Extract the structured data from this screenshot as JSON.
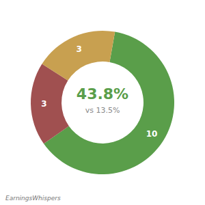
{
  "chart_data": {
    "type": "pie",
    "values": [
      10,
      3,
      3
    ],
    "colors": [
      "#5a9e4a",
      "#a05050",
      "#c8a050"
    ],
    "data_labels": true,
    "annotations": [
      "43.8%",
      "vs 13.5%",
      "EarningsWhispers"
    ]
  }
}
